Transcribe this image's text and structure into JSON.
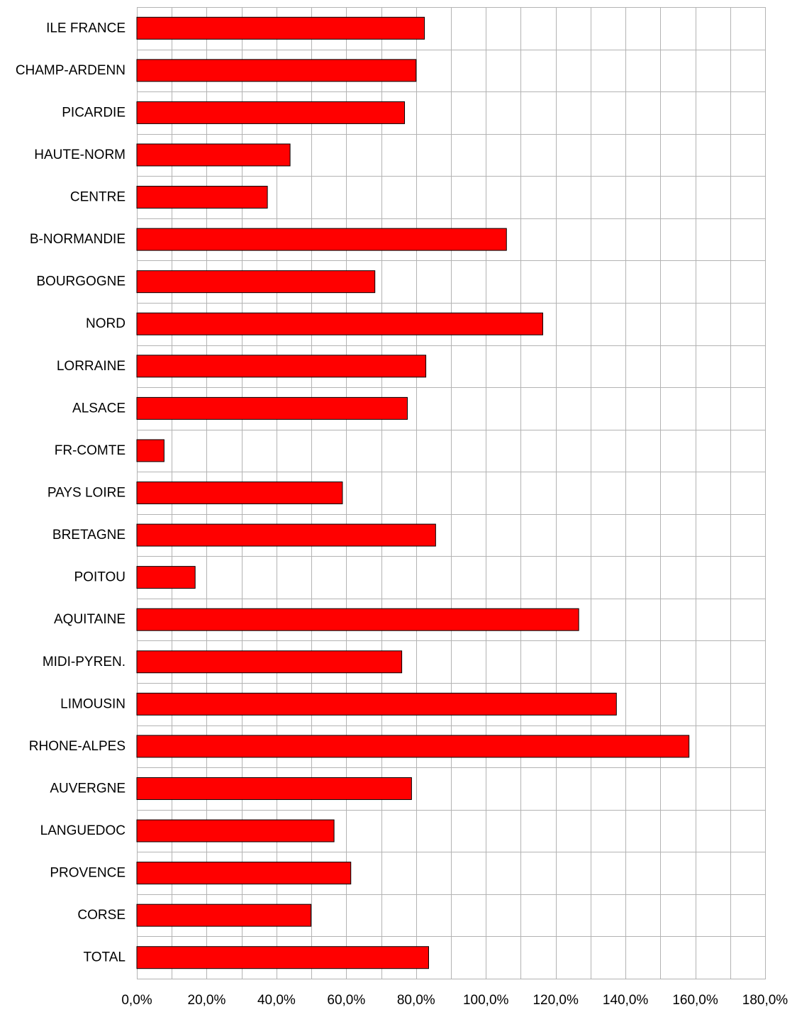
{
  "chart_data": {
    "type": "bar",
    "orientation": "horizontal",
    "title": "",
    "xlabel": "",
    "ylabel": "",
    "xlim": [
      0,
      180
    ],
    "x_ticks": [
      0,
      20,
      40,
      60,
      80,
      100,
      120,
      140,
      160,
      180
    ],
    "x_tick_labels": [
      "0,0%",
      "20,0%",
      "40,0%",
      "60,0%",
      "80,0%",
      "100,0%",
      "120,0%",
      "140,0%",
      "160,0%",
      "180,0%"
    ],
    "grid": true,
    "legend": "none",
    "bar_color": "#ff0000",
    "bar_outline_color": "#000000",
    "grid_color": "#b3b3b3",
    "categories": [
      "ILE FRANCE",
      "CHAMP-ARDENN",
      "PICARDIE",
      "HAUTE-NORM",
      "CENTRE",
      "B-NORMANDIE",
      "BOURGOGNE",
      "NORD",
      "LORRAINE",
      "ALSACE",
      "FR-COMTE",
      "PAYS LOIRE",
      "BRETAGNE",
      "POITOU",
      "AQUITAINE",
      "MIDI-PYREN.",
      "LIMOUSIN",
      "RHONE-ALPES",
      "AUVERGNE",
      "LANGUEDOC",
      "PROVENCE",
      "CORSE",
      "TOTAL"
    ],
    "values": [
      82.4,
      80.0,
      76.7,
      43.9,
      37.4,
      105.9,
      68.2,
      116.3,
      82.8,
      77.5,
      7.8,
      58.9,
      85.6,
      16.7,
      126.6,
      75.9,
      137.4,
      158.2,
      78.7,
      56.5,
      61.3,
      49.9,
      83.6
    ]
  }
}
